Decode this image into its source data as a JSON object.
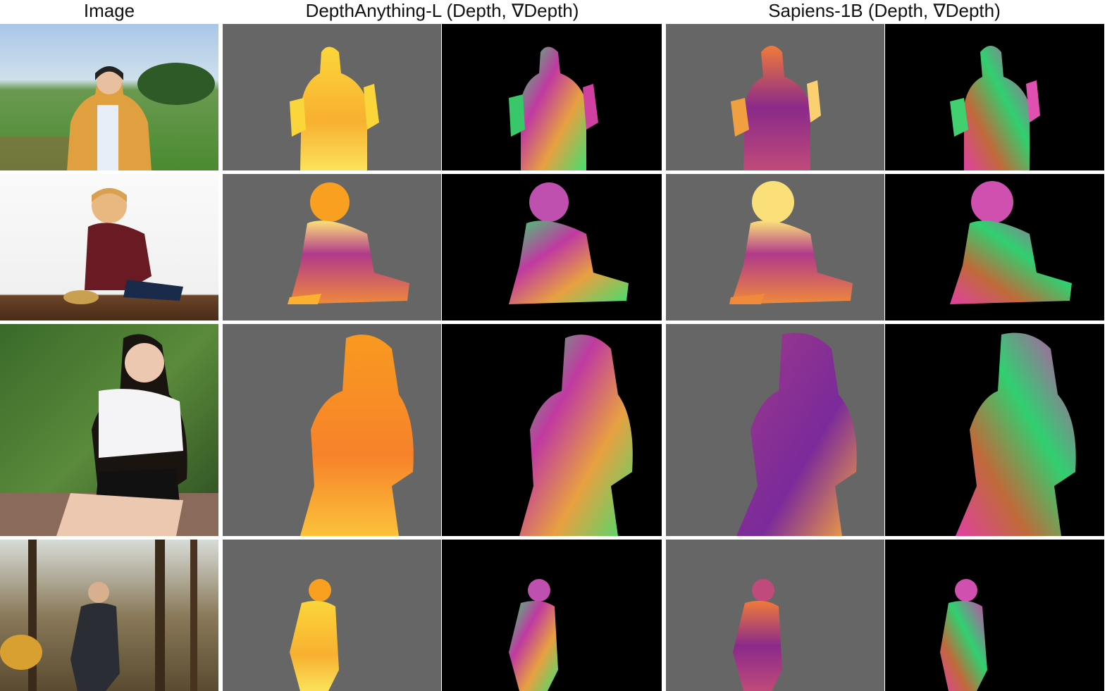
{
  "headers": {
    "image": "Image",
    "depthanything": "DepthAnything-L (Depth, ∇Depth)",
    "sapiens": "Sapiens-1B (Depth, ∇Depth)"
  },
  "rows": [
    {
      "subject": "woman holding items in a green field"
    },
    {
      "subject": "child sitting with a toy on a wooden table"
    },
    {
      "subject": "woman in white shirt sitting outdoors"
    },
    {
      "subject": "man holding a camera in a forest"
    }
  ],
  "colors": {
    "depth_background": "#666666",
    "gradient_background": "#000000",
    "depth_anything_palette": [
      "#fde84a",
      "#f8a52b",
      "#e8723a"
    ],
    "sapiens_palette": [
      "#fbe07a",
      "#f07a3a",
      "#a03a8a",
      "#4a1a7a"
    ],
    "gradient_palette": [
      "#33dd66",
      "#d03aa0",
      "#f0a040"
    ]
  }
}
